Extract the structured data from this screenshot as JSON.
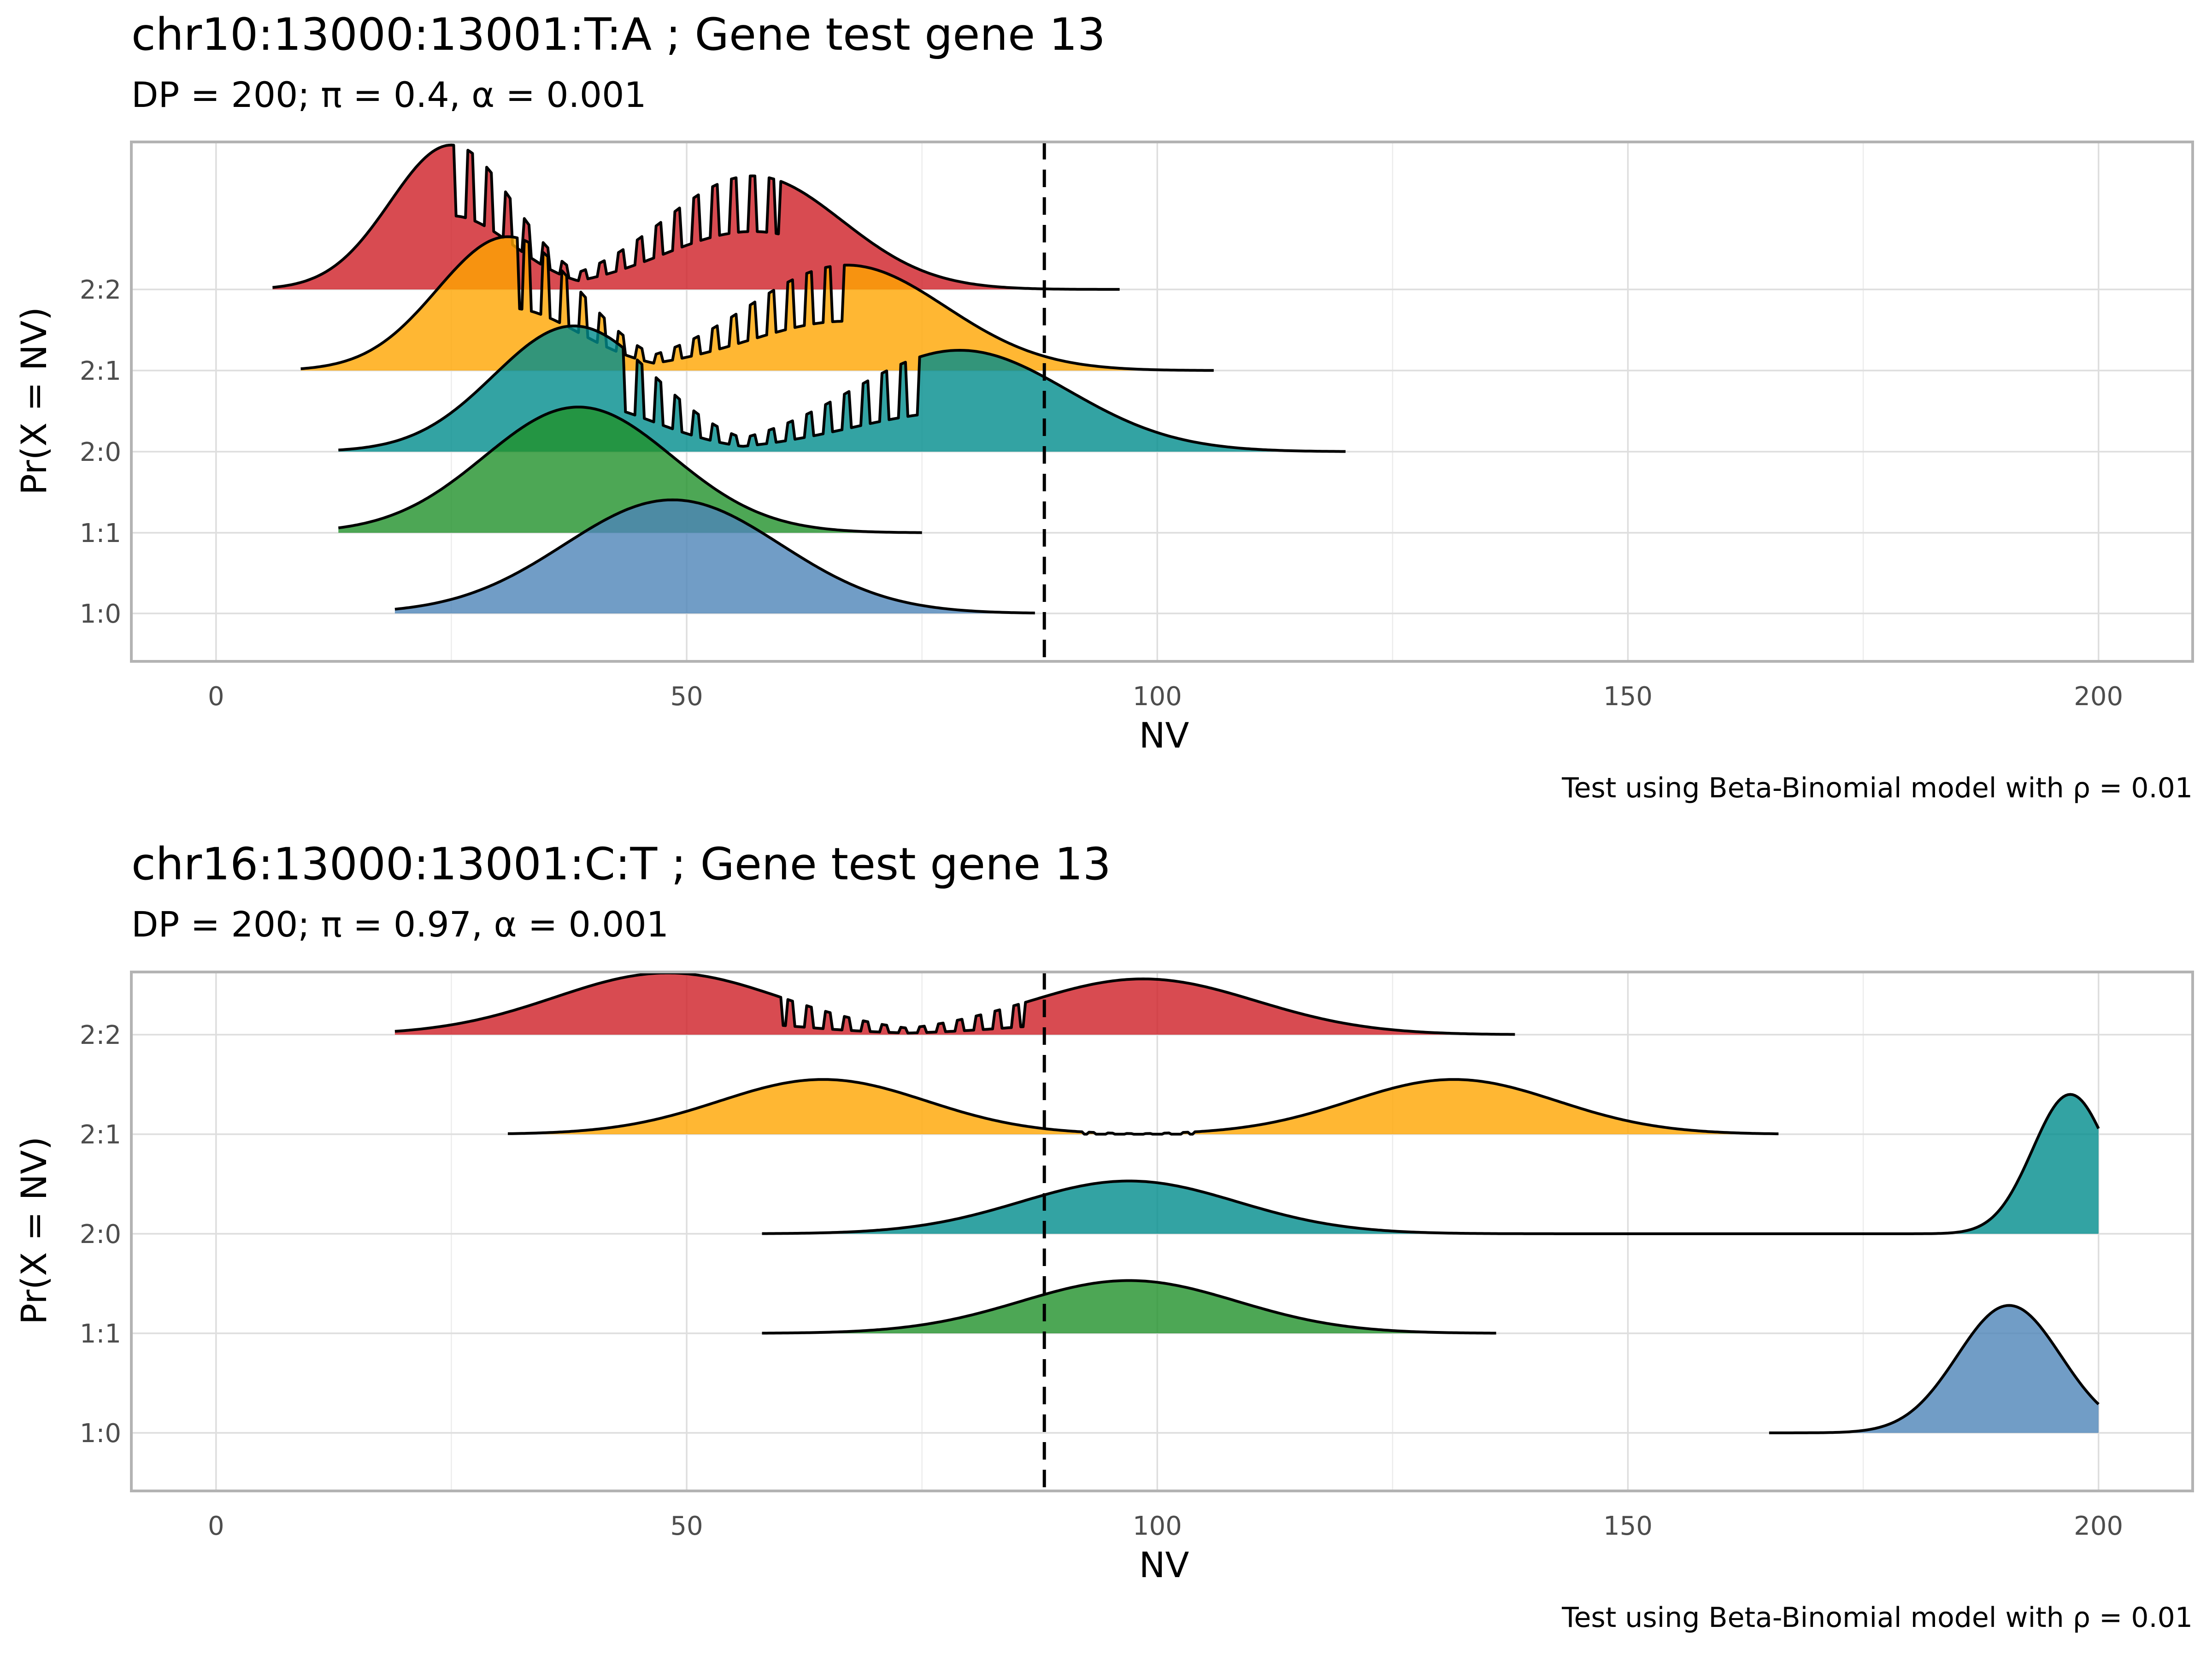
{
  "chart_data": [
    {
      "type": "ridgeline",
      "title": "chr10:13000:13001:T:A ; Gene test gene 13",
      "subtitle": "DP = 200; π = 0.4,  α = 0.001",
      "xlabel": "NV",
      "ylabel": "Pr(X = NV)",
      "caption": "Test using Beta-Binomial model with ρ = 0.01",
      "xlim": [
        -9,
        210
      ],
      "x_ticks": [
        0,
        50,
        100,
        150,
        200
      ],
      "x_tick_labels": [
        "0",
        "50",
        "100",
        "150",
        "200"
      ],
      "categories": [
        "1:0",
        "1:1",
        "2:0",
        "2:1",
        "2:2"
      ],
      "threshold_nv": 88,
      "grid": true,
      "series": [
        {
          "name": "1:0",
          "color": "#4E84B8",
          "x_range": [
            19,
            87
          ],
          "peaks": [
            {
              "mean": 48.5,
              "sd": 11.5,
              "height": 1.4
            }
          ],
          "accept_region": [],
          "accept_peak_ratio": 0
        },
        {
          "name": "1:1",
          "color": "#21912A",
          "x_range": [
            13,
            75
          ],
          "peaks": [
            {
              "mean": 38.5,
              "sd": 10,
              "height": 1.55
            }
          ],
          "accept_region": [],
          "accept_peak_ratio": 0
        },
        {
          "name": "2:0",
          "color": "#008C8C",
          "x_range": [
            13,
            120
          ],
          "peaks": [
            {
              "mean": 38,
              "sd": 8.5,
              "height": 1.55
            },
            {
              "mean": 79,
              "sd": 11.5,
              "height": 1.25
            }
          ],
          "accept_region": [
            43,
            75
          ],
          "accept_peak_ratio": 0.65
        },
        {
          "name": "2:1",
          "color": "#FFA500",
          "x_range": [
            9,
            106
          ],
          "peaks": [
            {
              "mean": 31,
              "sd": 7.5,
              "height": 1.65
            },
            {
              "mean": 67,
              "sd": 10.5,
              "height": 1.3
            }
          ],
          "accept_region": [
            32,
            67
          ],
          "accept_peak_ratio": 0.78
        },
        {
          "name": "2:2",
          "color": "#CE1E25",
          "x_range": [
            6,
            96
          ],
          "peaks": [
            {
              "mean": 25,
              "sd": 6.5,
              "height": 1.78
            },
            {
              "mean": 57,
              "sd": 9.5,
              "height": 1.4
            }
          ],
          "accept_region": [
            25,
            60
          ],
          "accept_peak_ratio": 0.85
        }
      ]
    },
    {
      "type": "ridgeline",
      "title": "chr16:13000:13001:C:T ; Gene test gene 13",
      "subtitle": "DP = 200; π = 0.97,  α = 0.001",
      "xlabel": "NV",
      "ylabel": "Pr(X = NV)",
      "caption": "Test using Beta-Binomial model with ρ = 0.01",
      "xlim": [
        -9,
        210
      ],
      "x_ticks": [
        0,
        50,
        100,
        150,
        200
      ],
      "x_tick_labels": [
        "0",
        "50",
        "100",
        "150",
        "200"
      ],
      "categories": [
        "1:0",
        "1:1",
        "2:0",
        "2:1",
        "2:2"
      ],
      "threshold_nv": 88,
      "grid": true,
      "series": [
        {
          "name": "1:0",
          "color": "#4E84B8",
          "x_range": [
            165,
            200
          ],
          "peaks": [
            {
              "mean": 190.5,
              "sd": 5.5,
              "height": 1.28
            }
          ],
          "accept_region": [],
          "accept_peak_ratio": 0
        },
        {
          "name": "1:1",
          "color": "#21912A",
          "x_range": [
            58,
            136
          ],
          "peaks": [
            {
              "mean": 97,
              "sd": 11.5,
              "height": 0.53
            }
          ],
          "accept_region": [],
          "accept_peak_ratio": 0
        },
        {
          "name": "2:0",
          "color": "#008C8C",
          "x_range": [
            58,
            200
          ],
          "peaks": [
            {
              "mean": 97,
              "sd": 11.5,
              "height": 0.53
            },
            {
              "mean": 197,
              "sd": 4,
              "height": 1.4
            }
          ],
          "accept_region": [],
          "accept_peak_ratio": 0
        },
        {
          "name": "2:1",
          "color": "#FFA500",
          "x_range": [
            31,
            166
          ],
          "peaks": [
            {
              "mean": 64.5,
              "sd": 11,
              "height": 0.55
            },
            {
              "mean": 131.5,
              "sd": 11,
              "height": 0.55
            }
          ],
          "accept_region": [
            92,
            104
          ],
          "accept_peak_ratio": 0.05
        },
        {
          "name": "2:2",
          "color": "#CE1E25",
          "x_range": [
            19,
            138
          ],
          "peaks": [
            {
              "mean": 48,
              "sd": 12,
              "height": 0.62
            },
            {
              "mean": 98.5,
              "sd": 12,
              "height": 0.56
            }
          ],
          "accept_region": [
            60,
            86
          ],
          "accept_peak_ratio": 0.42
        }
      ]
    }
  ]
}
